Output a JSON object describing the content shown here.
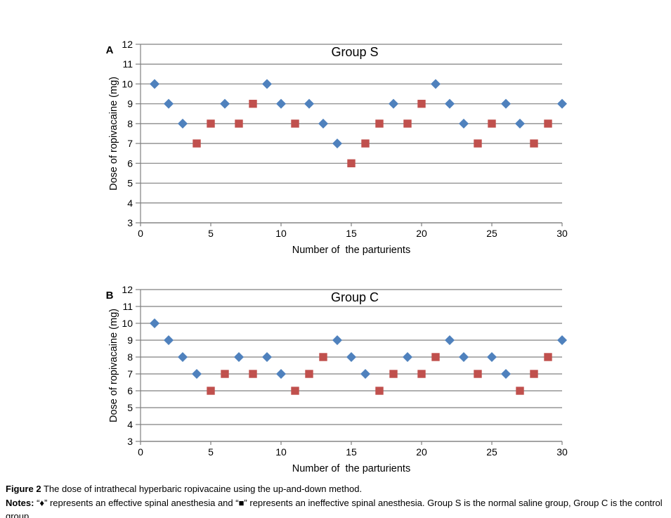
{
  "colors": {
    "effective_marker": "#4F81BD",
    "ineffective_marker": "#C0504D",
    "gridline": "#808080",
    "axis": "#808080",
    "text": "#000000",
    "background": "#FFFFFF"
  },
  "chart_data": [
    {
      "type": "scatter",
      "panel_label": "A",
      "title": "Group S",
      "xlabel": "Number of  the parturients",
      "ylabel": "Dose of ropivacaine (mg)",
      "xlim": [
        0,
        30
      ],
      "ylim": [
        3,
        12
      ],
      "x_ticks": [
        0,
        5,
        10,
        15,
        20,
        25,
        30
      ],
      "y_ticks": [
        3,
        4,
        5,
        6,
        7,
        8,
        9,
        10,
        11,
        12
      ],
      "grid": "horizontal gridlines only",
      "legend": "none",
      "series": [
        {
          "name": "effective spinal anesthesia",
          "marker": "diamond",
          "color": "#4F81BD",
          "points": [
            [
              1,
              10
            ],
            [
              2,
              9
            ],
            [
              3,
              8
            ],
            [
              6,
              9
            ],
            [
              9,
              10
            ],
            [
              10,
              9
            ],
            [
              12,
              9
            ],
            [
              13,
              8
            ],
            [
              14,
              7
            ],
            [
              18,
              9
            ],
            [
              21,
              10
            ],
            [
              22,
              9
            ],
            [
              23,
              8
            ],
            [
              26,
              9
            ],
            [
              27,
              8
            ],
            [
              30,
              9
            ]
          ]
        },
        {
          "name": "ineffective spinal anesthesia",
          "marker": "square",
          "color": "#C0504D",
          "points": [
            [
              4,
              7
            ],
            [
              5,
              8
            ],
            [
              7,
              8
            ],
            [
              8,
              9
            ],
            [
              11,
              8
            ],
            [
              15,
              6
            ],
            [
              16,
              7
            ],
            [
              17,
              8
            ],
            [
              19,
              8
            ],
            [
              20,
              9
            ],
            [
              24,
              7
            ],
            [
              25,
              8
            ],
            [
              28,
              7
            ],
            [
              29,
              8
            ]
          ]
        }
      ]
    },
    {
      "type": "scatter",
      "panel_label": "B",
      "title": "Group C",
      "xlabel": "Number of  the parturients",
      "ylabel": "Dose of ropivacaine (mg)",
      "xlim": [
        0,
        30
      ],
      "ylim": [
        3,
        12
      ],
      "x_ticks": [
        0,
        5,
        10,
        15,
        20,
        25,
        30
      ],
      "y_ticks": [
        3,
        4,
        5,
        6,
        7,
        8,
        9,
        10,
        11,
        12
      ],
      "grid": "horizontal gridlines only",
      "legend": "none",
      "series": [
        {
          "name": "effective spinal anesthesia",
          "marker": "diamond",
          "color": "#4F81BD",
          "points": [
            [
              1,
              10
            ],
            [
              2,
              9
            ],
            [
              3,
              8
            ],
            [
              4,
              7
            ],
            [
              7,
              8
            ],
            [
              9,
              8
            ],
            [
              10,
              7
            ],
            [
              14,
              9
            ],
            [
              15,
              8
            ],
            [
              16,
              7
            ],
            [
              19,
              8
            ],
            [
              22,
              9
            ],
            [
              23,
              8
            ],
            [
              25,
              8
            ],
            [
              26,
              7
            ],
            [
              30,
              9
            ]
          ]
        },
        {
          "name": "ineffective spinal anesthesia",
          "marker": "square",
          "color": "#C0504D",
          "points": [
            [
              5,
              6
            ],
            [
              6,
              7
            ],
            [
              8,
              7
            ],
            [
              11,
              6
            ],
            [
              12,
              7
            ],
            [
              13,
              8
            ],
            [
              17,
              6
            ],
            [
              18,
              7
            ],
            [
              20,
              7
            ],
            [
              21,
              8
            ],
            [
              24,
              7
            ],
            [
              27,
              6
            ],
            [
              28,
              7
            ],
            [
              29,
              8
            ]
          ]
        }
      ]
    }
  ],
  "caption": {
    "figure_label": "Figure 2",
    "figure_text": "The dose of intrathecal hyperbaric ropivacaine using the up-and-down method.",
    "notes_label": "Notes:",
    "notes_text": "“♦” represents an effective spinal anesthesia and “■” represents an ineffective spinal anesthesia. Group S is the normal saline group, Group C is the control group."
  }
}
